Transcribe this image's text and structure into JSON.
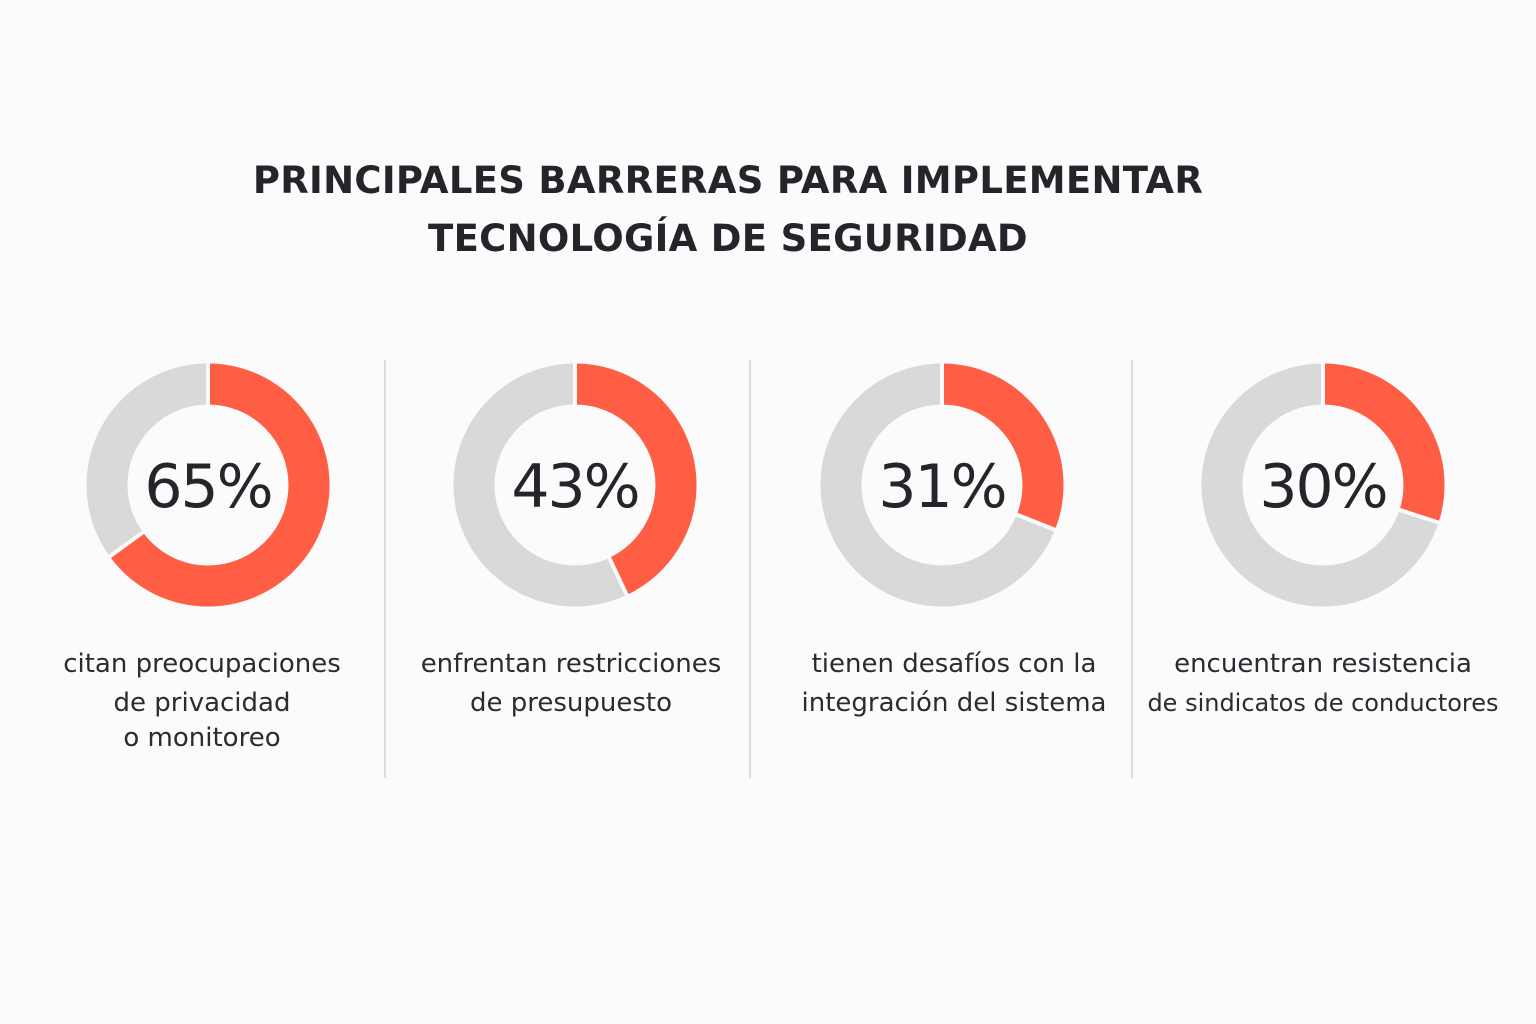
{
  "chart_data": {
    "type": "pie",
    "variant": "donut",
    "title": [
      "PRINCIPALES BARRERAS PARA IMPLEMENTAR",
      "TECNOLOGÍA DE SEGURIDAD"
    ],
    "colors": {
      "highlight": "#FF5E45",
      "remainder": "#D9D9D9"
    },
    "items": [
      {
        "value": 65,
        "value_label": "65%",
        "caption": [
          "citan preocupaciones",
          "de privacidad",
          "o monitoreo"
        ]
      },
      {
        "value": 43,
        "value_label": "43%",
        "caption": [
          "enfrentan restricciones",
          "de presupuesto"
        ]
      },
      {
        "value": 31,
        "value_label": "31%",
        "caption": [
          "tienen desafíos con la",
          "integración del sistema"
        ]
      },
      {
        "value": 30,
        "value_label": "30%",
        "caption": [
          "encuentran resistencia",
          "de sindicatos de conductores"
        ]
      }
    ]
  }
}
